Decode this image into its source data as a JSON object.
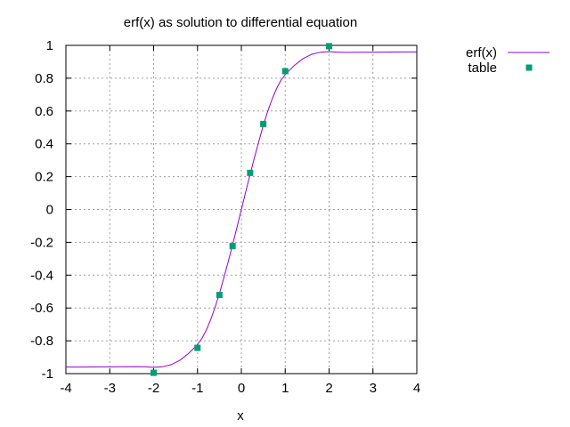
{
  "chart_data": {
    "type": "line",
    "title": "erf(x) as solution to differential equation",
    "xlabel": "x",
    "ylabel": "",
    "xlim": [
      -4,
      4
    ],
    "ylim": [
      -1,
      1
    ],
    "xticks": [
      -4,
      -3,
      -2,
      -1,
      0,
      1,
      2,
      3,
      4
    ],
    "yticks": [
      -1,
      -0.8,
      -0.6,
      -0.4,
      -0.2,
      0,
      0.2,
      0.4,
      0.6,
      0.8,
      1
    ],
    "grid": true,
    "legend_position": "outside-top-right",
    "series": [
      {
        "name": "erf(x)",
        "kind": "line",
        "color": "#9400d3",
        "x": [
          -4.0,
          -3.6,
          -3.2,
          -2.8,
          -2.4,
          -2.2,
          -2.0,
          -1.8,
          -1.6,
          -1.4,
          -1.2,
          -1.0,
          -0.9,
          -0.8,
          -0.7,
          -0.6,
          -0.5,
          -0.4,
          -0.3,
          -0.2,
          -0.1,
          0.0,
          0.1,
          0.2,
          0.3,
          0.4,
          0.5,
          0.6,
          0.7,
          0.8,
          0.9,
          1.0,
          1.2,
          1.4,
          1.6,
          1.8,
          2.0,
          2.2,
          2.4,
          2.8,
          3.2,
          3.6,
          4.0
        ],
        "y": [
          -0.96,
          -0.96,
          -0.959,
          -0.958,
          -0.957,
          -0.958,
          -0.962,
          -0.958,
          -0.945,
          -0.918,
          -0.876,
          -0.822,
          -0.786,
          -0.735,
          -0.672,
          -0.597,
          -0.512,
          -0.417,
          -0.318,
          -0.215,
          -0.108,
          0.0,
          0.108,
          0.215,
          0.318,
          0.417,
          0.512,
          0.597,
          0.672,
          0.735,
          0.786,
          0.822,
          0.876,
          0.918,
          0.945,
          0.958,
          0.962,
          0.958,
          0.957,
          0.958,
          0.959,
          0.96,
          0.96
        ]
      },
      {
        "name": "table",
        "kind": "points",
        "color": "#009e73",
        "x": [
          -2.0,
          -1.0,
          -0.5,
          -0.2,
          0.2,
          0.5,
          1.0,
          2.0
        ],
        "y": [
          -0.995,
          -0.843,
          -0.521,
          -0.223,
          0.223,
          0.521,
          0.843,
          0.995
        ]
      }
    ]
  }
}
